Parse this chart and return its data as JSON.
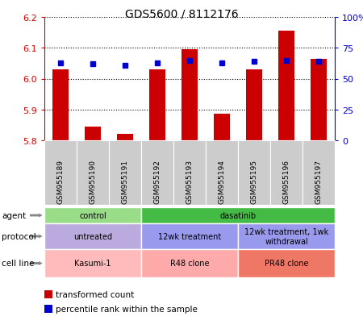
{
  "title": "GDS5600 / 8112176",
  "samples": [
    "GSM955189",
    "GSM955190",
    "GSM955191",
    "GSM955192",
    "GSM955193",
    "GSM955194",
    "GSM955195",
    "GSM955196",
    "GSM955197"
  ],
  "transformed_count": [
    6.03,
    5.845,
    5.82,
    6.03,
    6.095,
    5.885,
    6.03,
    6.155,
    6.065
  ],
  "percentile_rank": [
    63,
    62,
    61,
    63,
    65,
    63,
    64,
    65,
    64
  ],
  "ymin": 5.8,
  "ymax": 6.2,
  "yticks": [
    5.8,
    5.9,
    6.0,
    6.1,
    6.2
  ],
  "right_yticks": [
    0,
    25,
    50,
    75,
    100
  ],
  "bar_color": "#cc0000",
  "dot_color": "#0000cc",
  "agent_groups": [
    {
      "label": "control",
      "start": 0,
      "end": 3,
      "color": "#99dd88"
    },
    {
      "label": "dasatinib",
      "start": 3,
      "end": 9,
      "color": "#44bb44"
    }
  ],
  "protocol_groups": [
    {
      "label": "untreated",
      "start": 0,
      "end": 3,
      "color": "#bbaadd"
    },
    {
      "label": "12wk treatment",
      "start": 3,
      "end": 6,
      "color": "#9999ee"
    },
    {
      "label": "12wk treatment, 1wk\nwithdrawal",
      "start": 6,
      "end": 9,
      "color": "#9999ee"
    }
  ],
  "cellline_groups": [
    {
      "label": "Kasumi-1",
      "start": 0,
      "end": 3,
      "color": "#ffbbbb"
    },
    {
      "label": "R48 clone",
      "start": 3,
      "end": 6,
      "color": "#ffaaaa"
    },
    {
      "label": "PR48 clone",
      "start": 6,
      "end": 9,
      "color": "#ee7766"
    }
  ],
  "row_labels": [
    "agent",
    "protocol",
    "cell line"
  ],
  "legend_items": [
    {
      "color": "#cc0000",
      "label": "transformed count"
    },
    {
      "color": "#0000cc",
      "label": "percentile rank within the sample"
    }
  ],
  "background_color": "#ffffff",
  "grid_color": "#000000",
  "tick_color_left": "#cc0000",
  "tick_color_right": "#0000cc",
  "sample_box_color": "#cccccc",
  "arrow_color": "#888888"
}
